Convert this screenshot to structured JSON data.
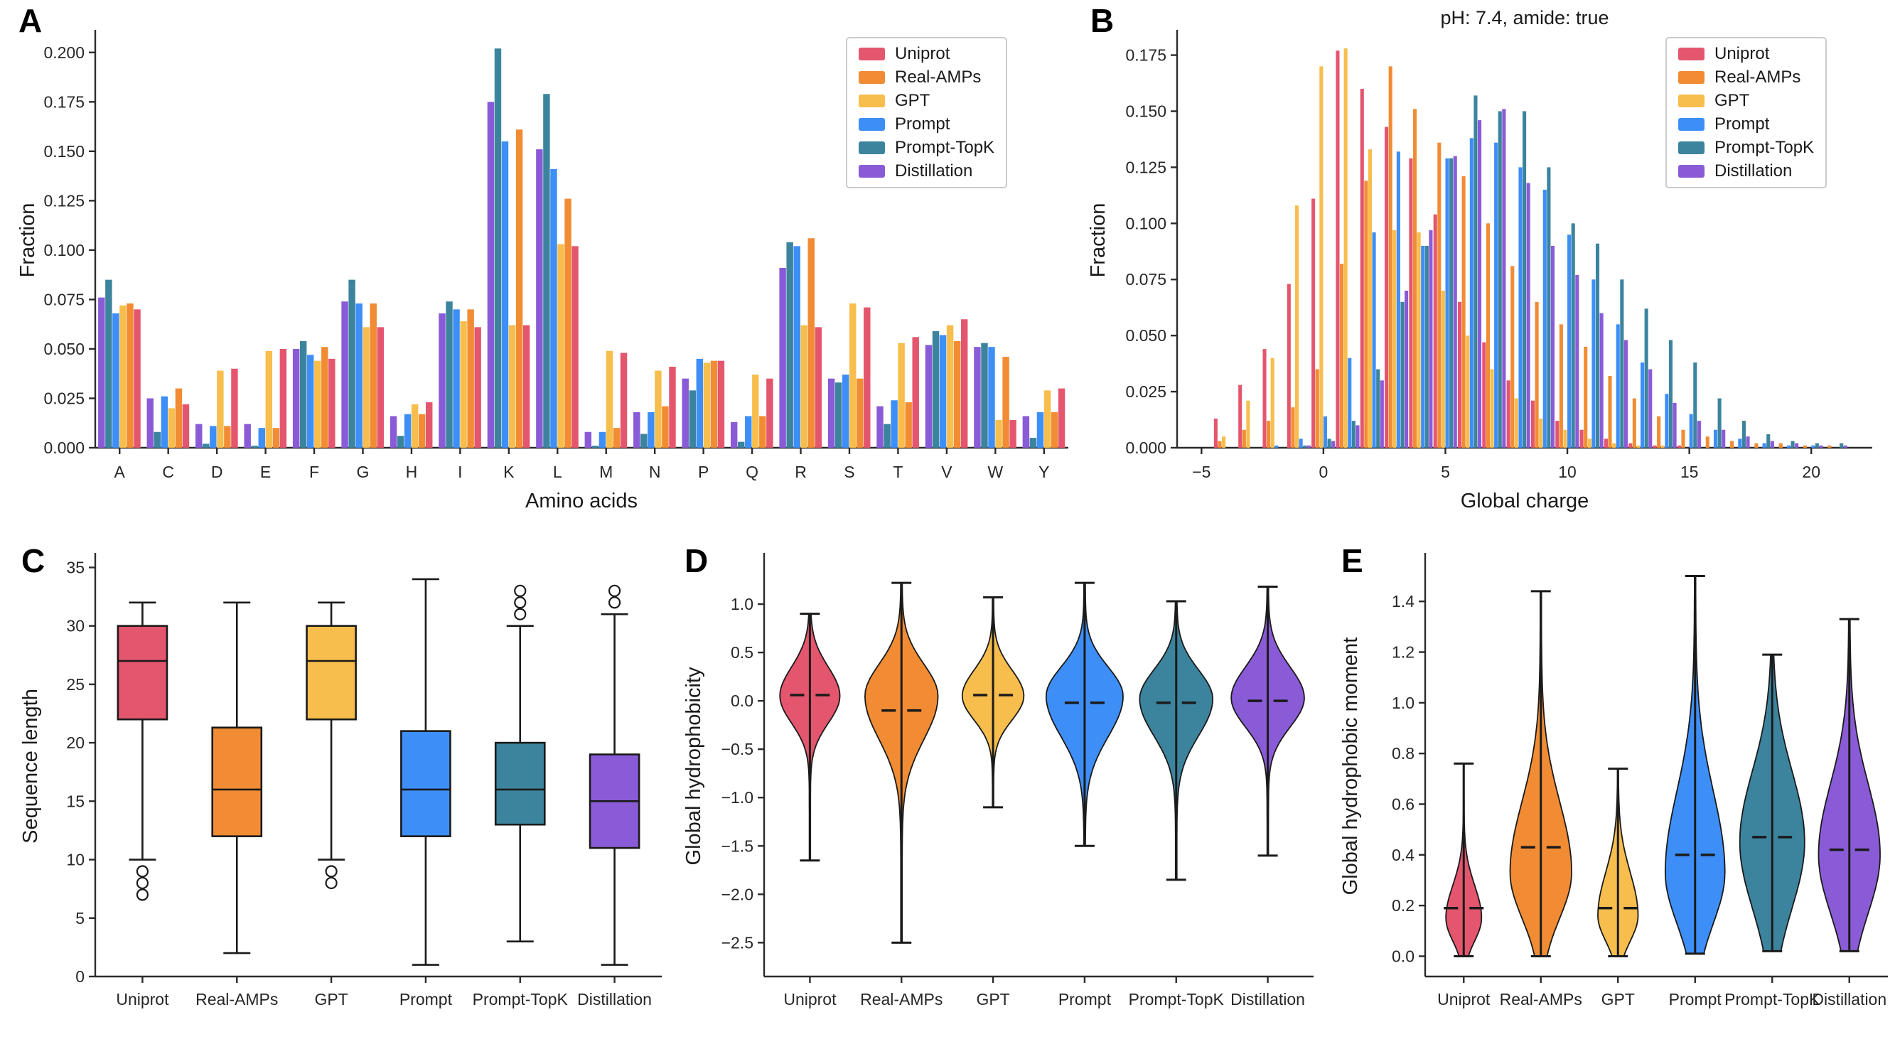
{
  "figure": {
    "background": "#ffffff",
    "panel_labels": [
      "A",
      "B",
      "C",
      "D",
      "E"
    ],
    "series": [
      {
        "name": "Uniprot",
        "color": "#E4566E"
      },
      {
        "name": "Real-AMPs",
        "color": "#F18C34"
      },
      {
        "name": "GPT",
        "color": "#F7BE4D"
      },
      {
        "name": "Prompt",
        "color": "#3E8EF7"
      },
      {
        "name": "Prompt-TopK",
        "color": "#3C849E"
      },
      {
        "name": "Distillation",
        "color": "#8A5BD6"
      }
    ],
    "axis_color": "#2b2b2b",
    "line_color": "#1a1a1a"
  },
  "chart_data": [
    {
      "panel": "A",
      "type": "bar",
      "title": "",
      "xlabel": "Amino acids",
      "ylabel": "Fraction",
      "ylim": [
        0,
        0.21
      ],
      "yticks": [
        0.0,
        0.025,
        0.05,
        0.075,
        0.1,
        0.125,
        0.15,
        0.175,
        0.2
      ],
      "ytick_decimals": 3,
      "grid": false,
      "legend_position": "upper right",
      "categories": [
        "A",
        "C",
        "D",
        "E",
        "F",
        "G",
        "H",
        "I",
        "K",
        "L",
        "M",
        "N",
        "P",
        "Q",
        "R",
        "S",
        "T",
        "V",
        "W",
        "Y"
      ],
      "bar_order_within_group": [
        "Distillation",
        "Prompt-TopK",
        "Prompt",
        "GPT",
        "Real-AMPs",
        "Uniprot"
      ],
      "series": [
        {
          "name": "Uniprot",
          "values": [
            0.07,
            0.022,
            0.04,
            0.05,
            0.045,
            0.061,
            0.023,
            0.061,
            0.062,
            0.102,
            0.048,
            0.041,
            0.044,
            0.035,
            0.061,
            0.071,
            0.056,
            0.065,
            0.014,
            0.03
          ]
        },
        {
          "name": "Real-AMPs",
          "values": [
            0.073,
            0.03,
            0.011,
            0.01,
            0.051,
            0.073,
            0.017,
            0.07,
            0.161,
            0.126,
            0.01,
            0.021,
            0.044,
            0.016,
            0.106,
            0.035,
            0.023,
            0.054,
            0.046,
            0.018
          ]
        },
        {
          "name": "GPT",
          "values": [
            0.072,
            0.02,
            0.039,
            0.049,
            0.044,
            0.061,
            0.022,
            0.064,
            0.062,
            0.103,
            0.049,
            0.039,
            0.043,
            0.037,
            0.062,
            0.073,
            0.053,
            0.062,
            0.014,
            0.029
          ]
        },
        {
          "name": "Prompt",
          "values": [
            0.068,
            0.026,
            0.011,
            0.01,
            0.047,
            0.073,
            0.017,
            0.07,
            0.155,
            0.141,
            0.008,
            0.018,
            0.045,
            0.016,
            0.102,
            0.037,
            0.024,
            0.057,
            0.051,
            0.018
          ]
        },
        {
          "name": "Prompt-TopK",
          "values": [
            0.085,
            0.008,
            0.002,
            0.001,
            0.054,
            0.085,
            0.006,
            0.074,
            0.202,
            0.179,
            0.001,
            0.007,
            0.029,
            0.003,
            0.104,
            0.033,
            0.012,
            0.059,
            0.053,
            0.005
          ]
        },
        {
          "name": "Distillation",
          "values": [
            0.076,
            0.025,
            0.012,
            0.012,
            0.05,
            0.074,
            0.016,
            0.068,
            0.175,
            0.151,
            0.008,
            0.018,
            0.035,
            0.013,
            0.091,
            0.035,
            0.021,
            0.052,
            0.051,
            0.016
          ]
        }
      ]
    },
    {
      "panel": "B",
      "type": "bar",
      "subtype": "histogram",
      "title": "pH: 7.4,  amide: true",
      "xlabel": "Global charge",
      "ylabel": "Fraction",
      "xlim": [
        -6,
        22.5
      ],
      "ylim": [
        0,
        0.185
      ],
      "xticks": [
        -5,
        0,
        5,
        10,
        15,
        20
      ],
      "yticks": [
        0.0,
        0.025,
        0.05,
        0.075,
        0.1,
        0.125,
        0.15,
        0.175
      ],
      "ytick_decimals": 3,
      "grid": false,
      "legend_position": "upper right",
      "x": [
        -5,
        -4,
        -3,
        -2,
        -1,
        0,
        1,
        2,
        3,
        4,
        5,
        6,
        7,
        8,
        9,
        10,
        11,
        12,
        13,
        14,
        15,
        16,
        17,
        18,
        19,
        20,
        21
      ],
      "series": [
        {
          "name": "Uniprot",
          "values": [
            0.0,
            0.013,
            0.028,
            0.044,
            0.073,
            0.111,
            0.177,
            0.16,
            0.143,
            0.129,
            0.104,
            0.065,
            0.047,
            0.03,
            0.021,
            0.012,
            0.008,
            0.004,
            0.002,
            0.001,
            0.001,
            0.0,
            0.0,
            0.0,
            0.0,
            0.0,
            0.0
          ]
        },
        {
          "name": "Real-AMPs",
          "values": [
            0.0,
            0.003,
            0.008,
            0.012,
            0.018,
            0.035,
            0.082,
            0.119,
            0.17,
            0.151,
            0.136,
            0.121,
            0.1,
            0.081,
            0.065,
            0.055,
            0.045,
            0.032,
            0.022,
            0.014,
            0.008,
            0.005,
            0.003,
            0.002,
            0.002,
            0.001,
            0.001
          ]
        },
        {
          "name": "GPT",
          "values": [
            0.0,
            0.005,
            0.021,
            0.04,
            0.108,
            0.17,
            0.178,
            0.133,
            0.097,
            0.096,
            0.07,
            0.05,
            0.035,
            0.022,
            0.013,
            0.008,
            0.004,
            0.002,
            0.001,
            0.001,
            0.0,
            0.0,
            0.0,
            0.0,
            0.0,
            0.0,
            0.0
          ]
        },
        {
          "name": "Prompt",
          "values": [
            0.0,
            0.0,
            0.0,
            0.001,
            0.004,
            0.014,
            0.04,
            0.096,
            0.132,
            0.09,
            0.129,
            0.138,
            0.136,
            0.125,
            0.115,
            0.095,
            0.075,
            0.055,
            0.038,
            0.024,
            0.015,
            0.008,
            0.004,
            0.002,
            0.001,
            0.001,
            0.0
          ]
        },
        {
          "name": "Prompt-TopK",
          "values": [
            0.0,
            0.0,
            0.0,
            0.0,
            0.001,
            0.004,
            0.012,
            0.035,
            0.065,
            0.09,
            0.129,
            0.157,
            0.15,
            0.15,
            0.125,
            0.1,
            0.091,
            0.075,
            0.062,
            0.048,
            0.038,
            0.022,
            0.012,
            0.006,
            0.003,
            0.002,
            0.002
          ]
        },
        {
          "name": "Distillation",
          "values": [
            0.0,
            0.0,
            0.0,
            0.0,
            0.001,
            0.003,
            0.01,
            0.03,
            0.07,
            0.097,
            0.13,
            0.146,
            0.151,
            0.118,
            0.09,
            0.077,
            0.06,
            0.048,
            0.035,
            0.02,
            0.012,
            0.008,
            0.005,
            0.003,
            0.002,
            0.001,
            0.001
          ]
        }
      ]
    },
    {
      "panel": "C",
      "type": "box",
      "title": "",
      "xlabel": "",
      "ylabel": "Sequence length",
      "ylim": [
        0,
        36
      ],
      "yticks": [
        0,
        5,
        10,
        15,
        20,
        25,
        30,
        35
      ],
      "ytick_decimals": 0,
      "grid": false,
      "categories": [
        "Uniprot",
        "Real-AMPs",
        "GPT",
        "Prompt",
        "Prompt-TopK",
        "Distillation"
      ],
      "boxes": [
        {
          "name": "Uniprot",
          "whisker_low": 10,
          "q1": 22,
          "median": 27,
          "q3": 30,
          "whisker_high": 32,
          "outliers": [
            9,
            8,
            7
          ]
        },
        {
          "name": "Real-AMPs",
          "whisker_low": 2,
          "q1": 12,
          "median": 16,
          "q3": 21.3,
          "whisker_high": 32,
          "outliers": []
        },
        {
          "name": "GPT",
          "whisker_low": 10,
          "q1": 22,
          "median": 27,
          "q3": 30,
          "whisker_high": 32,
          "outliers": [
            9,
            8
          ]
        },
        {
          "name": "Prompt",
          "whisker_low": 1,
          "q1": 12,
          "median": 16,
          "q3": 21,
          "whisker_high": 34,
          "outliers": []
        },
        {
          "name": "Prompt-TopK",
          "whisker_low": 3,
          "q1": 13,
          "median": 16,
          "q3": 20,
          "whisker_high": 30,
          "outliers": [
            31,
            32,
            33
          ]
        },
        {
          "name": "Distillation",
          "whisker_low": 1,
          "q1": 11,
          "median": 15,
          "q3": 19,
          "whisker_high": 31,
          "outliers": [
            32,
            33
          ]
        }
      ]
    },
    {
      "panel": "D",
      "type": "violin",
      "title": "",
      "xlabel": "",
      "ylabel": "Global hydrophobicity",
      "ylim": [
        -2.85,
        1.5
      ],
      "yticks": [
        1.0,
        0.5,
        0.0,
        -0.5,
        -1.0,
        -1.5,
        -2.0,
        -2.5
      ],
      "ytick_decimals": 1,
      "grid": false,
      "categories": [
        "Uniprot",
        "Real-AMPs",
        "GPT",
        "Prompt",
        "Prompt-TopK",
        "Distillation"
      ],
      "violins": [
        {
          "name": "Uniprot",
          "min": -1.65,
          "max": 0.9,
          "median": 0.06,
          "peak": 0.05,
          "sigma_low": 0.28,
          "sigma_high": 0.3,
          "width": 0.78
        },
        {
          "name": "Real-AMPs",
          "min": -2.5,
          "max": 1.22,
          "median": -0.1,
          "peak": 0.05,
          "sigma_low": 0.45,
          "sigma_high": 0.33,
          "width": 0.95
        },
        {
          "name": "GPT",
          "min": -1.1,
          "max": 1.07,
          "median": 0.06,
          "peak": 0.05,
          "sigma_low": 0.25,
          "sigma_high": 0.27,
          "width": 0.8
        },
        {
          "name": "Prompt",
          "min": -1.5,
          "max": 1.22,
          "median": -0.02,
          "peak": 0.05,
          "sigma_low": 0.42,
          "sigma_high": 0.3,
          "width": 1.0
        },
        {
          "name": "Prompt-TopK",
          "min": -1.85,
          "max": 1.03,
          "median": -0.02,
          "peak": 0.02,
          "sigma_low": 0.38,
          "sigma_high": 0.3,
          "width": 0.95
        },
        {
          "name": "Distillation",
          "min": -1.6,
          "max": 1.18,
          "median": 0.0,
          "peak": 0.03,
          "sigma_low": 0.3,
          "sigma_high": 0.32,
          "width": 0.95
        }
      ]
    },
    {
      "panel": "E",
      "type": "violin",
      "title": "",
      "xlabel": "",
      "ylabel": "Global hydrophobic moment",
      "ylim": [
        -0.08,
        1.58
      ],
      "yticks": [
        0.0,
        0.2,
        0.4,
        0.6,
        0.8,
        1.0,
        1.2,
        1.4
      ],
      "ytick_decimals": 1,
      "grid": false,
      "categories": [
        "Uniprot",
        "Real-AMPs",
        "GPT",
        "Prompt",
        "Prompt-TopK",
        "Distillation"
      ],
      "violins": [
        {
          "name": "Uniprot",
          "min": 0.0,
          "max": 0.76,
          "median": 0.19,
          "peak": 0.15,
          "sigma_low": 0.09,
          "sigma_high": 0.13,
          "width": 0.55
        },
        {
          "name": "Real-AMPs",
          "min": 0.0,
          "max": 1.44,
          "median": 0.43,
          "peak": 0.33,
          "sigma_low": 0.18,
          "sigma_high": 0.28,
          "width": 0.95
        },
        {
          "name": "GPT",
          "min": 0.0,
          "max": 0.74,
          "median": 0.19,
          "peak": 0.16,
          "sigma_low": 0.1,
          "sigma_high": 0.17,
          "width": 0.62
        },
        {
          "name": "Prompt",
          "min": 0.01,
          "max": 1.5,
          "median": 0.4,
          "peak": 0.33,
          "sigma_low": 0.2,
          "sigma_high": 0.32,
          "width": 0.92
        },
        {
          "name": "Prompt-TopK",
          "min": 0.02,
          "max": 1.19,
          "median": 0.47,
          "peak": 0.45,
          "sigma_low": 0.26,
          "sigma_high": 0.28,
          "width": 1.0
        },
        {
          "name": "Distillation",
          "min": 0.02,
          "max": 1.33,
          "median": 0.42,
          "peak": 0.4,
          "sigma_low": 0.23,
          "sigma_high": 0.28,
          "width": 0.95
        }
      ]
    }
  ]
}
